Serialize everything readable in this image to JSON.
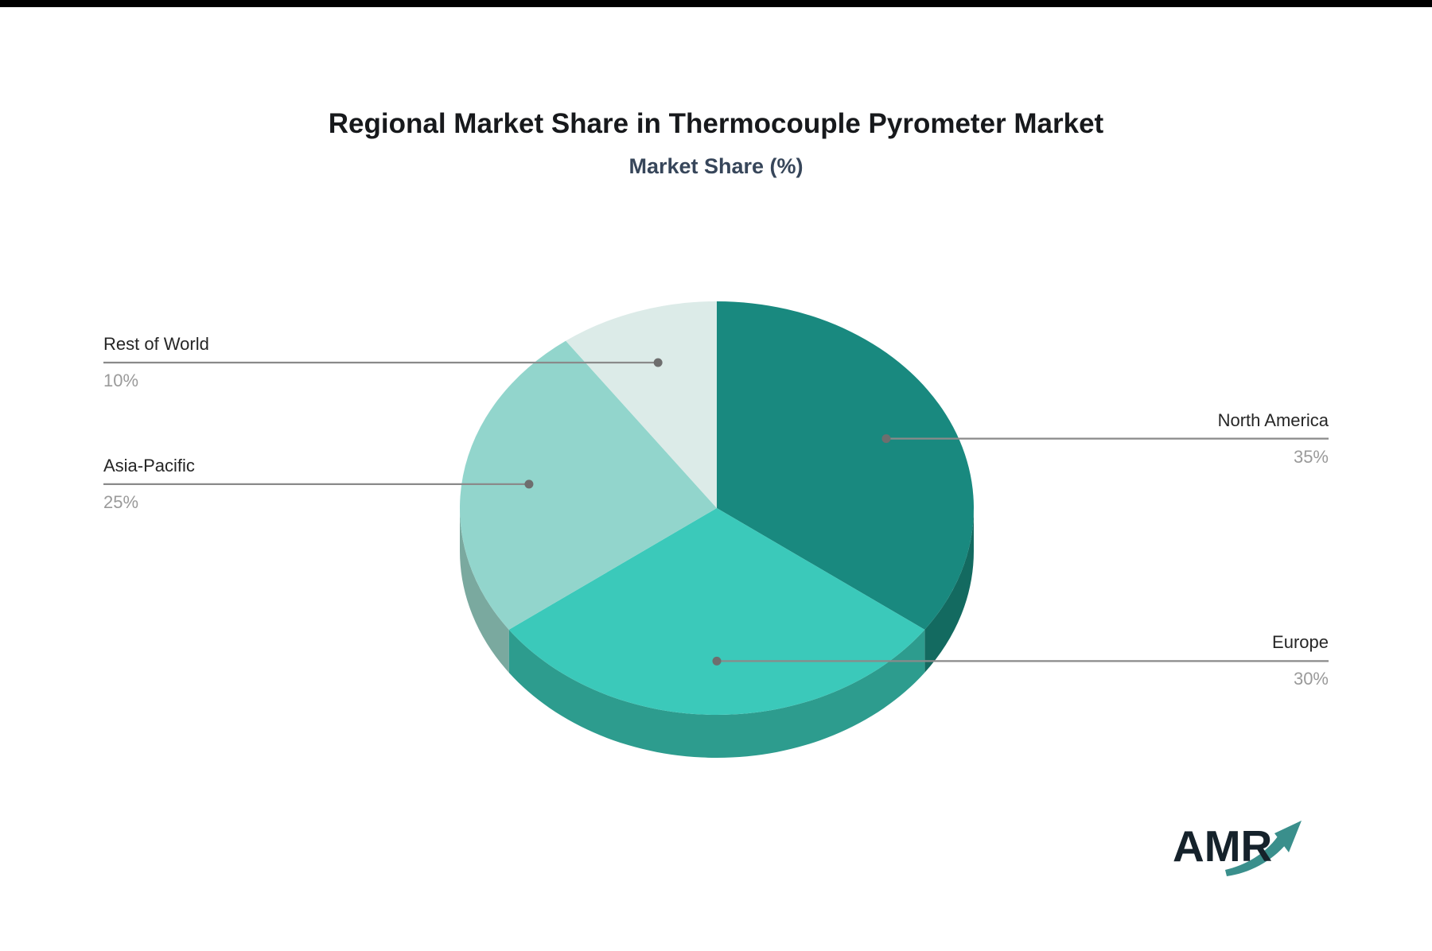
{
  "title": "Regional Market Share in Thermocouple Pyrometer Market",
  "subtitle": "Market Share (%)",
  "logo": {
    "text": "AMR"
  },
  "colors": {
    "title": "#17191c",
    "subtitle": "#37465a",
    "label_name": "#262626",
    "label_pct": "#9a9a9a",
    "leader_line": "#8a8a8a",
    "leader_dot": "#6e6e6e",
    "logo_text": "#15222b",
    "logo_arrow": "#3a8f8c",
    "top_border": "#000000"
  },
  "chart_data": {
    "type": "pie",
    "style": "3d",
    "title": "Regional Market Share in Thermocouple Pyrometer Market",
    "subtitle": "Market Share (%)",
    "start_angle_deg": 0,
    "direction": "clockwise",
    "legend_position": "none",
    "categories": [
      "North America",
      "Europe",
      "Asia-Pacific",
      "Rest of World"
    ],
    "values": [
      35,
      30,
      25,
      10
    ],
    "value_labels": [
      "35%",
      "30%",
      "25%",
      "10%"
    ],
    "label_sides": [
      "right",
      "right",
      "left",
      "left"
    ],
    "slice_colors": [
      "#19897f",
      "#3bc9ba",
      "#92d5cc",
      "#dcebe8"
    ],
    "side_colors": [
      "#136a60",
      "#2d9c8e",
      "#7aa99f",
      "#c6dcd8"
    ]
  }
}
